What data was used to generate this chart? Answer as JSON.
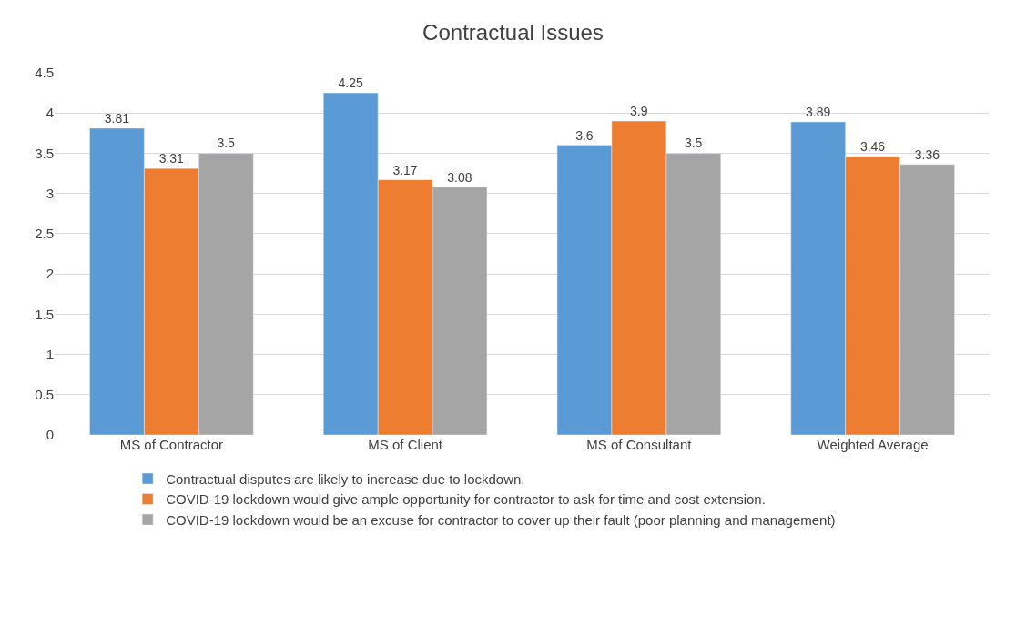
{
  "chart_data": {
    "type": "bar",
    "title": "Contractual Issues",
    "categories": [
      "MS of Contractor",
      "MS of Client",
      "MS of Consultant",
      "Weighted Average"
    ],
    "series": [
      {
        "name": "Contractual disputes are likely to increase due to lockdown.",
        "color": "#5b9bd5",
        "values": [
          3.81,
          4.25,
          3.6,
          3.89
        ]
      },
      {
        "name": "COVID-19 lockdown would give ample opportunity for contractor to ask for time and cost extension.",
        "color": "#ed7d31",
        "values": [
          3.31,
          3.17,
          3.9,
          3.46
        ]
      },
      {
        "name": "COVID-19 lockdown would be an excuse for contractor to cover up their fault (poor planning and management)",
        "color": "#a5a5a5",
        "values": [
          3.5,
          3.08,
          3.5,
          3.36
        ]
      }
    ],
    "ylim": [
      0,
      4.5
    ],
    "yticks": [
      0,
      0.5,
      1,
      1.5,
      2,
      2.5,
      3,
      3.5,
      4,
      4.5
    ],
    "grid": "y",
    "legend": "bottom",
    "data_labels": true
  }
}
